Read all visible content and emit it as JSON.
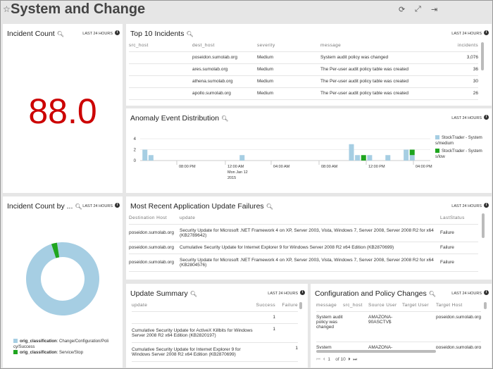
{
  "header": {
    "title": "System and Change",
    "icons": [
      "star-icon",
      "refresh-icon",
      "expand-icon",
      "exit-icon"
    ]
  },
  "time_range": "LAST 24 HOURS",
  "colors": {
    "light_blue": "#a6cee3",
    "green": "#1fa51f",
    "value_red": "#cc0000"
  },
  "incident_count": {
    "title": "Incident Count",
    "value": "88.0"
  },
  "top10": {
    "title": "Top 10 Incidents",
    "columns": [
      "src_host",
      "dest_host",
      "severity",
      "message",
      "incidents"
    ],
    "rows": [
      [
        "",
        "poseidon.sumolab.org",
        "Medium",
        "System audit policy was changed",
        "3,076"
      ],
      [
        "",
        "ares.sumolab.org",
        "Medium",
        "The Per-user audit policy table was created",
        "36"
      ],
      [
        "",
        "athena.sumolab.org",
        "Medium",
        "The Per-user audit policy table was created",
        "30"
      ],
      [
        "",
        "apollo.sumolab.org",
        "Medium",
        "The Per-user audit policy table was created",
        "26"
      ]
    ]
  },
  "anomaly": {
    "title": "Anomaly Event Distribution",
    "legend": [
      "StockTrader - System s/medium",
      "StockTrader - System s/low"
    ],
    "y_ticks": [
      "0",
      "2",
      "4"
    ],
    "x_ticks": [
      "08:00 PM",
      "12:00 AM",
      "04:00 AM",
      "08:00 AM",
      "12:00 PM",
      "04:00 PM"
    ],
    "date_label": [
      "Mon Jan 12",
      "2015"
    ]
  },
  "chart_data": [
    {
      "type": "bar",
      "stacked": true,
      "ylim": [
        0,
        4
      ],
      "x_ticks": [
        "08:00 PM",
        "12:00 AM",
        "04:00 AM",
        "08:00 AM",
        "12:00 PM",
        "04:00 PM"
      ],
      "categories": [
        "05:00 PM",
        "05:30 PM",
        "01:00 AM",
        "10:00 AM",
        "10:30 AM",
        "11:00 AM",
        "11:30 AM",
        "01:00 PM",
        "02:30 PM",
        "03:00 PM"
      ],
      "series": [
        {
          "name": "StockTrader - System s/medium",
          "values": [
            2,
            1,
            1,
            3,
            1,
            0,
            1,
            1,
            2,
            1
          ]
        },
        {
          "name": "StockTrader - System s/low",
          "values": [
            0,
            0,
            0,
            0,
            0,
            1,
            0,
            0,
            0,
            1
          ]
        }
      ]
    },
    {
      "type": "pie",
      "donut": true,
      "labels": [
        "orig_classification: Change/Configuration/Policy/Success",
        "orig_classification: Service/Stop"
      ],
      "values": [
        97.5,
        2.5
      ]
    }
  ],
  "incident_by": {
    "title": "Incident Count by ...",
    "legend": [
      {
        "key": "orig_classification",
        "value": ": Change/Configuration/Poli cy/Success"
      },
      {
        "key": "orig_classification",
        "value": ": Service/Stop"
      }
    ]
  },
  "failures": {
    "title": "Most Recent Application Update Failures",
    "columns": [
      "Destination Host",
      "update",
      "LastStatus"
    ],
    "rows": [
      [
        "poseidon.sumolab.org",
        "Security Update for Microsoft .NET Framework 4 on XP, Server 2003, Vista, Windows 7, Server 2008, Server 2008 R2 for x64 (KB2789642)",
        "Failure"
      ],
      [
        "poseidon.sumolab.org",
        "Cumulative Security Update for Internet Explorer 9 for Windows Server 2008 R2 x64 Edition (KB2870699)",
        "Failure"
      ],
      [
        "poseidon.sumolab.org",
        "Security Update for Microsoft .NET Framework 4 on XP, Server 2003, Vista, Windows 7, Server 2008, Server 2008 R2 for x64 (KB2804576)",
        "Failure"
      ]
    ]
  },
  "update_summary": {
    "title": "Update Summary",
    "columns": [
      "update",
      "Success",
      "Failure"
    ],
    "rows": [
      [
        "",
        "1",
        ""
      ],
      [
        "Cumulative Security Update for ActiveX Killbits for Windows Server 2008 R2 x64 Edition (KB2820197)",
        "1",
        ""
      ],
      [
        "Cumulative Security Update for Internet Explorer 9 for Windows Server 2008 R2 x64 Edition (KB2870699)",
        "",
        "1"
      ]
    ]
  },
  "config": {
    "title": "Configuration and Policy Changes",
    "columns": [
      "message",
      "src_host",
      "Source User",
      "Target User",
      "Target Host"
    ],
    "rows": [
      [
        "System audit policy was changed",
        "",
        "AMAZONA-90ASCTV$",
        "",
        "poseidon.sumolab.org"
      ],
      [
        "System",
        "",
        "AMAZONA-",
        "",
        "poseidon.sumolab.org"
      ]
    ],
    "pager": {
      "page": "1",
      "of": "of",
      "total": "10"
    }
  }
}
